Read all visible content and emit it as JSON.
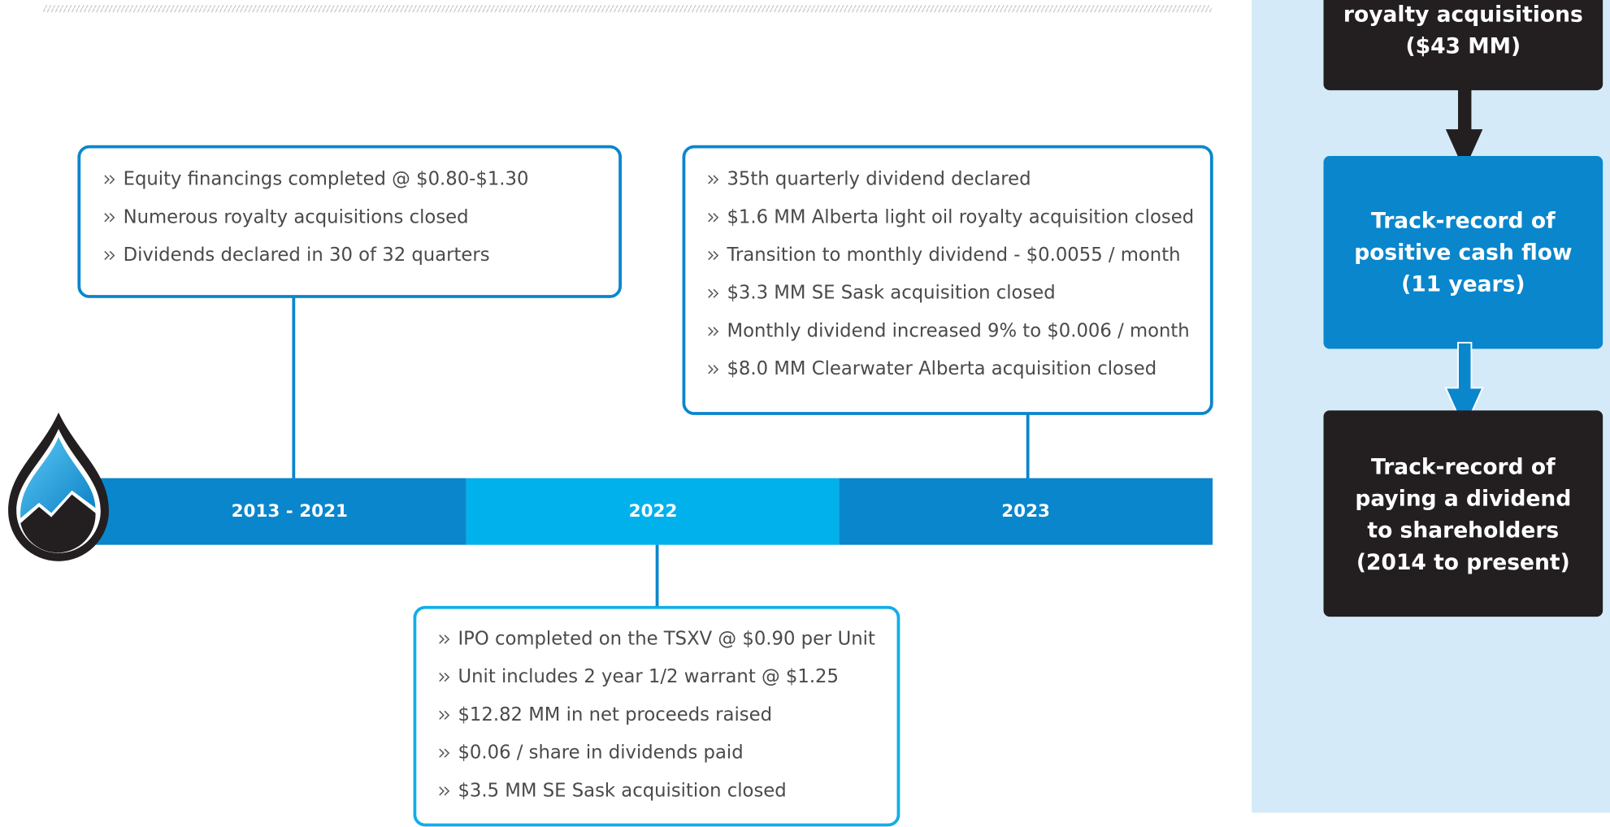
{
  "timeline": [
    {
      "label": "2013 - 2021",
      "items": [
        "Equity financings completed @ $0.80-$1.30",
        "Numerous royalty acquisitions closed",
        "Dividends declared in 30 of 32 quarters"
      ]
    },
    {
      "label": "2022",
      "items": [
        "IPO completed on the TSXV @ $0.90 per Unit",
        "Unit includes 2 year 1/2 warrant @ $1.25",
        "$12.82 MM in net proceeds raised",
        "$0.06 / share in dividends paid",
        "$3.5 MM SE Sask acquisition closed"
      ]
    },
    {
      "label": "2023",
      "items": [
        "35th quarterly dividend declared",
        "$1.6 MM Alberta light oil royalty acquisition closed",
        "Transition to monthly dividend - $0.0055 / month",
        "$3.3 MM SE Sask acquisition closed",
        "Monthly dividend increased 9% to $0.006 / month",
        "$8.0 MM Clearwater Alberta acquisition closed"
      ]
    }
  ],
  "sidebar": [
    {
      "lines": [
        "royalty acquisitions",
        "($43 MM)"
      ]
    },
    {
      "lines": [
        "Track-record of",
        "positive cash flow",
        "(11 years)"
      ]
    },
    {
      "lines": [
        "Track-record of",
        "paying a dividend",
        "to shareholders",
        "(2014 to present)"
      ]
    }
  ]
}
